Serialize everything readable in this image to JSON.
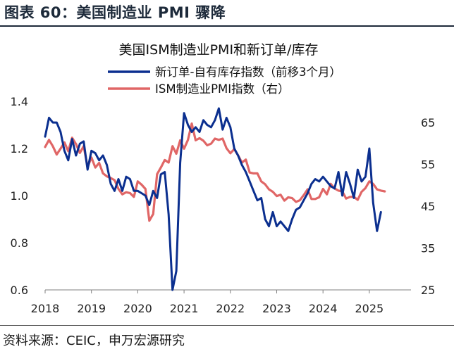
{
  "figure": {
    "title": "图表 60：美国制造业 PMI 骤降",
    "source": "资料来源：CEIC，申万宏源研究"
  },
  "chart_data": {
    "type": "line",
    "title": "美国ISM制造业PMI和新订单/库存",
    "xlabel": "",
    "ylabel_left": "",
    "ylabel_right": "",
    "x_ticks": [
      "2018",
      "2019",
      "2020",
      "2021",
      "2022",
      "2023",
      "2024",
      "2025"
    ],
    "y_left": {
      "lim": [
        0.6,
        1.4
      ],
      "ticks": [
        "0.6",
        "0.8",
        "1.0",
        "1.2",
        "1.4"
      ]
    },
    "y_right": {
      "lim": [
        25,
        70
      ],
      "ticks": [
        "25",
        "35",
        "45",
        "55",
        "65"
      ]
    },
    "legend_position": "top-center",
    "series": [
      {
        "name": "新订单-自有库存指数（前移3个月）",
        "axis": "left",
        "color": "#0b2f8f",
        "points": [
          [
            "2018-01",
            1.25
          ],
          [
            "2018-02",
            1.33
          ],
          [
            "2018-03",
            1.31
          ],
          [
            "2018-04",
            1.31
          ],
          [
            "2018-05",
            1.27
          ],
          [
            "2018-06",
            1.19
          ],
          [
            "2018-07",
            1.15
          ],
          [
            "2018-08",
            1.24
          ],
          [
            "2018-09",
            1.17
          ],
          [
            "2018-10",
            1.22
          ],
          [
            "2018-11",
            1.23
          ],
          [
            "2018-12",
            1.11
          ],
          [
            "2019-01",
            1.19
          ],
          [
            "2019-02",
            1.18
          ],
          [
            "2019-03",
            1.15
          ],
          [
            "2019-04",
            1.17
          ],
          [
            "2019-05",
            1.13
          ],
          [
            "2019-06",
            1.05
          ],
          [
            "2019-07",
            1.02
          ],
          [
            "2019-08",
            1.07
          ],
          [
            "2019-09",
            1.02
          ],
          [
            "2019-10",
            1.08
          ],
          [
            "2019-11",
            1.07
          ],
          [
            "2019-12",
            1.02
          ],
          [
            "2020-01",
            1.02
          ],
          [
            "2020-02",
            1.01
          ],
          [
            "2020-03",
            1.0
          ],
          [
            "2020-04",
            0.96
          ],
          [
            "2020-05",
            1.02
          ],
          [
            "2020-06",
            0.99
          ],
          [
            "2020-07",
            1.09
          ],
          [
            "2020-08",
            1.1
          ],
          [
            "2020-09",
            0.92
          ],
          [
            "2020-10",
            0.6
          ],
          [
            "2020-11",
            0.68
          ],
          [
            "2020-12",
            1.14
          ],
          [
            "2021-01",
            1.35
          ],
          [
            "2021-02",
            1.3
          ],
          [
            "2021-03",
            1.27
          ],
          [
            "2021-04",
            1.29
          ],
          [
            "2021-05",
            1.27
          ],
          [
            "2021-06",
            1.32
          ],
          [
            "2021-07",
            1.3
          ],
          [
            "2021-08",
            1.29
          ],
          [
            "2021-09",
            1.32
          ],
          [
            "2021-10",
            1.37
          ],
          [
            "2021-11",
            1.28
          ],
          [
            "2021-12",
            1.33
          ],
          [
            "2022-01",
            1.29
          ],
          [
            "2022-02",
            1.2
          ],
          [
            "2022-03",
            1.17
          ],
          [
            "2022-04",
            1.13
          ],
          [
            "2022-05",
            1.1
          ],
          [
            "2022-06",
            1.06
          ],
          [
            "2022-07",
            1.02
          ],
          [
            "2022-08",
            0.98
          ],
          [
            "2022-09",
            0.99
          ],
          [
            "2022-10",
            0.9
          ],
          [
            "2022-11",
            0.87
          ],
          [
            "2022-12",
            0.93
          ],
          [
            "2023-01",
            0.87
          ],
          [
            "2023-02",
            0.89
          ],
          [
            "2023-03",
            0.87
          ],
          [
            "2023-04",
            0.85
          ],
          [
            "2023-05",
            0.9
          ],
          [
            "2023-06",
            0.94
          ],
          [
            "2023-07",
            0.95
          ],
          [
            "2023-08",
            0.98
          ],
          [
            "2023-09",
            1.01
          ],
          [
            "2023-10",
            1.05
          ],
          [
            "2023-11",
            1.07
          ],
          [
            "2023-12",
            1.06
          ],
          [
            "2024-01",
            1.08
          ],
          [
            "2024-02",
            1.06
          ],
          [
            "2024-03",
            1.04
          ],
          [
            "2024-04",
            1.03
          ],
          [
            "2024-05",
            1.1
          ],
          [
            "2024-06",
            1.0
          ],
          [
            "2024-07",
            1.1
          ],
          [
            "2024-08",
            1.05
          ],
          [
            "2024-09",
            0.99
          ],
          [
            "2024-10",
            1.11
          ],
          [
            "2024-11",
            1.06
          ],
          [
            "2024-12",
            1.08
          ],
          [
            "2025-01",
            1.2
          ],
          [
            "2025-02",
            0.97
          ],
          [
            "2025-03",
            0.85
          ],
          [
            "2025-04",
            0.93
          ]
        ]
      },
      {
        "name": "ISM制造业PMI指数（右）",
        "axis": "right",
        "color": "#e06666",
        "points": [
          [
            "2018-01",
            59.1
          ],
          [
            "2018-02",
            60.8
          ],
          [
            "2018-03",
            59.3
          ],
          [
            "2018-04",
            57.3
          ],
          [
            "2018-05",
            58.7
          ],
          [
            "2018-06",
            60.2
          ],
          [
            "2018-07",
            58.1
          ],
          [
            "2018-08",
            61.3
          ],
          [
            "2018-09",
            59.8
          ],
          [
            "2018-10",
            57.7
          ],
          [
            "2018-11",
            59.3
          ],
          [
            "2018-12",
            54.3
          ],
          [
            "2019-01",
            56.6
          ],
          [
            "2019-02",
            54.2
          ],
          [
            "2019-03",
            55.3
          ],
          [
            "2019-04",
            52.8
          ],
          [
            "2019-05",
            52.1
          ],
          [
            "2019-06",
            51.7
          ],
          [
            "2019-07",
            51.2
          ],
          [
            "2019-08",
            49.1
          ],
          [
            "2019-09",
            47.8
          ],
          [
            "2019-10",
            48.3
          ],
          [
            "2019-11",
            48.1
          ],
          [
            "2019-12",
            47.2
          ],
          [
            "2020-01",
            50.9
          ],
          [
            "2020-02",
            50.1
          ],
          [
            "2020-03",
            49.1
          ],
          [
            "2020-04",
            41.5
          ],
          [
            "2020-05",
            43.1
          ],
          [
            "2020-06",
            52.6
          ],
          [
            "2020-07",
            54.2
          ],
          [
            "2020-08",
            56.0
          ],
          [
            "2020-09",
            55.4
          ],
          [
            "2020-10",
            59.3
          ],
          [
            "2020-11",
            57.5
          ],
          [
            "2020-12",
            60.7
          ],
          [
            "2021-01",
            58.7
          ],
          [
            "2021-02",
            60.8
          ],
          [
            "2021-03",
            64.7
          ],
          [
            "2021-04",
            60.7
          ],
          [
            "2021-05",
            61.2
          ],
          [
            "2021-06",
            60.6
          ],
          [
            "2021-07",
            59.5
          ],
          [
            "2021-08",
            59.9
          ],
          [
            "2021-09",
            61.1
          ],
          [
            "2021-10",
            60.8
          ],
          [
            "2021-11",
            61.1
          ],
          [
            "2021-12",
            58.8
          ],
          [
            "2022-01",
            57.6
          ],
          [
            "2022-02",
            58.6
          ],
          [
            "2022-03",
            57.1
          ],
          [
            "2022-04",
            55.4
          ],
          [
            "2022-05",
            56.1
          ],
          [
            "2022-06",
            53.0
          ],
          [
            "2022-07",
            52.8
          ],
          [
            "2022-08",
            52.8
          ],
          [
            "2022-09",
            50.9
          ],
          [
            "2022-10",
            50.2
          ],
          [
            "2022-11",
            49.0
          ],
          [
            "2022-12",
            48.4
          ],
          [
            "2023-01",
            47.4
          ],
          [
            "2023-02",
            47.7
          ],
          [
            "2023-03",
            46.3
          ],
          [
            "2023-04",
            47.1
          ],
          [
            "2023-05",
            46.9
          ],
          [
            "2023-06",
            46.0
          ],
          [
            "2023-07",
            46.4
          ],
          [
            "2023-08",
            47.6
          ],
          [
            "2023-09",
            49.0
          ],
          [
            "2023-10",
            46.7
          ],
          [
            "2023-11",
            46.7
          ],
          [
            "2023-12",
            47.1
          ],
          [
            "2024-01",
            49.1
          ],
          [
            "2024-02",
            47.8
          ],
          [
            "2024-03",
            50.3
          ],
          [
            "2024-04",
            49.2
          ],
          [
            "2024-05",
            48.7
          ],
          [
            "2024-06",
            48.5
          ],
          [
            "2024-07",
            46.8
          ],
          [
            "2024-08",
            47.2
          ],
          [
            "2024-09",
            47.2
          ],
          [
            "2024-10",
            46.5
          ],
          [
            "2024-11",
            48.4
          ],
          [
            "2024-12",
            49.3
          ],
          [
            "2025-01",
            50.9
          ],
          [
            "2025-02",
            50.3
          ],
          [
            "2025-03",
            49.0
          ],
          [
            "2025-04",
            48.7
          ],
          [
            "2025-05",
            48.5
          ]
        ]
      }
    ]
  }
}
